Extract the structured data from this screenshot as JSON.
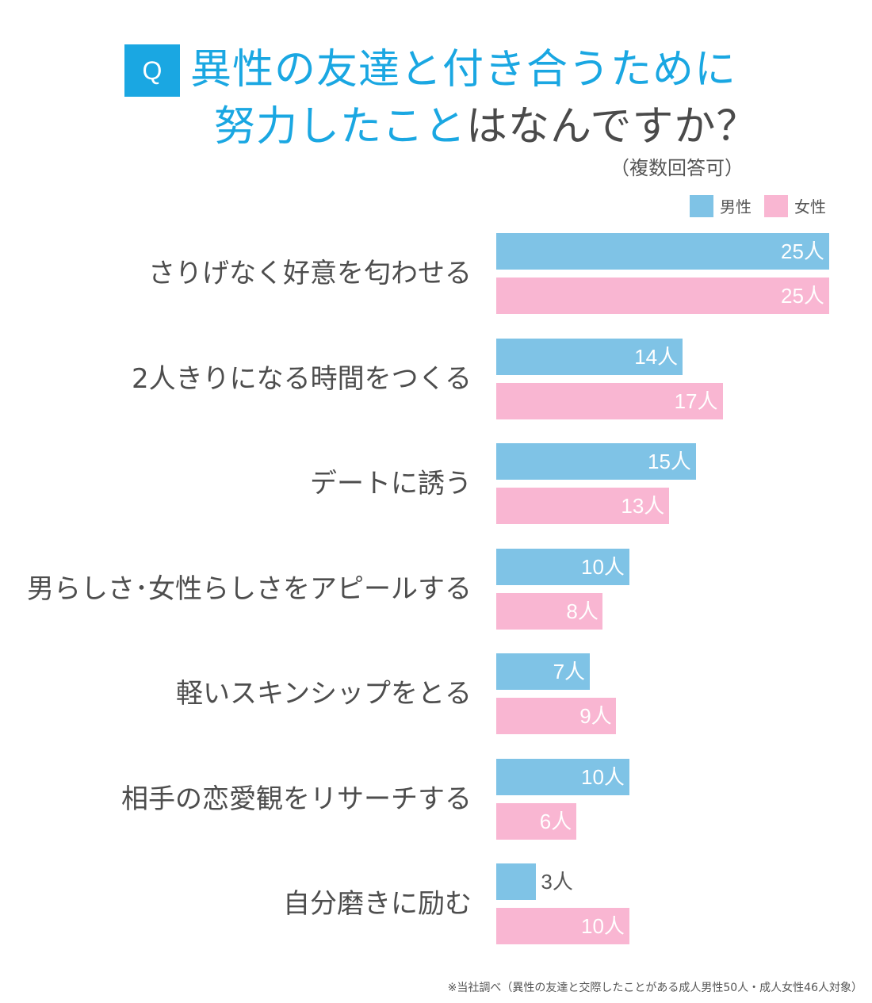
{
  "title": {
    "badge": "Q",
    "line1": "異性の友達と付き合うために",
    "line2_highlight": "努力したこと",
    "line2_rest": "はなんですか？",
    "subtitle": "（複数回答可）"
  },
  "colors": {
    "male": "#7fc3e6",
    "female": "#f9b6d2",
    "accent": "#1aa7e2"
  },
  "legend": [
    {
      "label": "男性",
      "color": "#7fc3e6"
    },
    {
      "label": "女性",
      "color": "#f9b6d2"
    }
  ],
  "chart_data": {
    "type": "bar",
    "orientation": "horizontal",
    "unit": "人",
    "categories": [
      "さりげなく好意を匂わせる",
      "2人きりになる時間をつくる",
      "デートに誘う",
      "男らしさ･女性らしさをアピールする",
      "軽いスキンシップをとる",
      "相手の恋愛観をリサーチする",
      "自分磨きに励む"
    ],
    "series": [
      {
        "name": "男性",
        "values": [
          25,
          14,
          15,
          10,
          7,
          10,
          3
        ]
      },
      {
        "name": "女性",
        "values": [
          25,
          17,
          13,
          8,
          9,
          6,
          10
        ]
      }
    ],
    "value_labels": {
      "男性": [
        "25人",
        "14人",
        "15人",
        "10人",
        "7人",
        "10人",
        "3人"
      ],
      "女性": [
        "25人",
        "17人",
        "13人",
        "8人",
        "9人",
        "6人",
        "10人"
      ]
    },
    "xlim": [
      0,
      25
    ],
    "legend_position": "top-right",
    "grid": false
  },
  "footnote": "※当社調べ（異性の友達と交際したことがある成人男性50人・成人女性46人対象）"
}
